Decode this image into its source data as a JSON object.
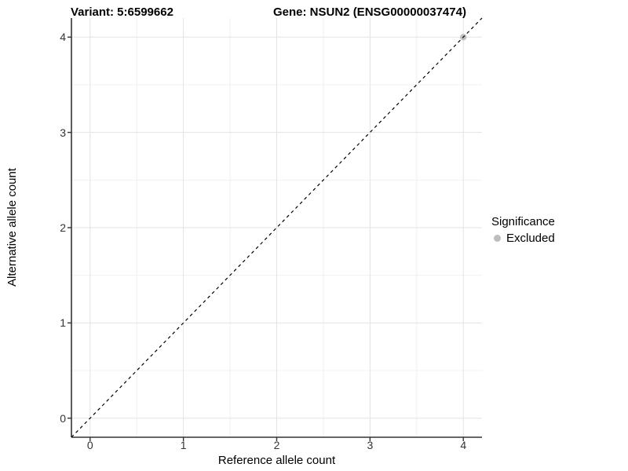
{
  "chart_data": {
    "type": "scatter",
    "title_left": "Variant: 5:6599662",
    "title_right": "Gene: NSUN2 (ENSG00000037474)",
    "xlabel": "Reference allele count",
    "ylabel": "Alternative allele count",
    "xlim": [
      -0.2,
      4.2
    ],
    "ylim": [
      -0.2,
      4.2
    ],
    "x_ticks": [
      0,
      1,
      2,
      3,
      4
    ],
    "y_ticks": [
      0,
      1,
      2,
      3,
      4
    ],
    "x_minor_ticks": [
      0.5,
      1.5,
      2.5,
      3.5
    ],
    "y_minor_ticks": [
      0.5,
      1.5,
      2.5,
      3.5
    ],
    "grid": true,
    "grid_major_color": "#e3e3e3",
    "grid_minor_color": "#f0f0f0",
    "axis_line_color": "#333333",
    "identity_line": {
      "style": "dashed",
      "color": "#000000",
      "from": [
        -0.2,
        -0.2
      ],
      "to": [
        4.2,
        4.2
      ]
    },
    "series": [
      {
        "name": "Excluded",
        "color": "#c0c0c0",
        "points": [
          [
            4,
            4
          ]
        ]
      }
    ],
    "legend": {
      "title": "Significance",
      "position": "right",
      "items": [
        {
          "label": "Excluded",
          "color": "#bdbdbd",
          "marker": "circle"
        }
      ]
    }
  }
}
